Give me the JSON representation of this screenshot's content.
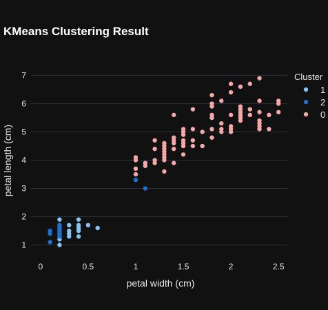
{
  "chart_data": {
    "type": "scatter",
    "title": "KMeans Clustering Result",
    "xlabel": "petal width (cm)",
    "ylabel": "petal length (cm)",
    "xlim": [
      -0.1,
      2.6
    ],
    "ylim": [
      0.6,
      7.4
    ],
    "xticks": [
      0,
      0.5,
      1,
      1.5,
      2,
      2.5
    ],
    "yticks": [
      1,
      2,
      3,
      4,
      5,
      6,
      7
    ],
    "grid": "horizontal",
    "legend": {
      "title": "Cluster",
      "placement": "right"
    },
    "series": [
      {
        "name": "1",
        "color": "#87c3f5",
        "points": [
          [
            0.2,
            1.0
          ],
          [
            0.2,
            1.2
          ],
          [
            0.2,
            1.3
          ],
          [
            0.2,
            1.4
          ],
          [
            0.2,
            1.5
          ],
          [
            0.2,
            1.6
          ],
          [
            0.2,
            1.7
          ],
          [
            0.2,
            1.9
          ],
          [
            0.3,
            1.3
          ],
          [
            0.3,
            1.4
          ],
          [
            0.3,
            1.5
          ],
          [
            0.3,
            1.7
          ],
          [
            0.4,
            1.3
          ],
          [
            0.4,
            1.5
          ],
          [
            0.4,
            1.6
          ],
          [
            0.4,
            1.7
          ],
          [
            0.4,
            1.9
          ],
          [
            0.5,
            1.7
          ],
          [
            0.6,
            1.6
          ]
        ]
      },
      {
        "name": "2",
        "color": "#1f6fd1",
        "points": [
          [
            0.1,
            1.1
          ],
          [
            0.1,
            1.4
          ],
          [
            0.1,
            1.5
          ],
          [
            0.2,
            1.3
          ],
          [
            0.2,
            1.4
          ],
          [
            0.2,
            1.5
          ],
          [
            0.2,
            1.6
          ],
          [
            0.2,
            1.7
          ],
          [
            1.0,
            3.3
          ],
          [
            1.1,
            3.0
          ]
        ]
      },
      {
        "name": "0",
        "color": "#f4a8a8",
        "points": [
          [
            1.0,
            3.5
          ],
          [
            1.0,
            3.7
          ],
          [
            1.0,
            4.0
          ],
          [
            1.0,
            4.1
          ],
          [
            1.1,
            3.8
          ],
          [
            1.1,
            3.9
          ],
          [
            1.2,
            3.9
          ],
          [
            1.2,
            4.0
          ],
          [
            1.2,
            4.4
          ],
          [
            1.2,
            4.7
          ],
          [
            1.3,
            3.6
          ],
          [
            1.3,
            4.0
          ],
          [
            1.3,
            4.1
          ],
          [
            1.3,
            4.2
          ],
          [
            1.3,
            4.3
          ],
          [
            1.3,
            4.4
          ],
          [
            1.3,
            4.5
          ],
          [
            1.3,
            4.6
          ],
          [
            1.4,
            3.9
          ],
          [
            1.4,
            4.4
          ],
          [
            1.4,
            4.6
          ],
          [
            1.4,
            4.7
          ],
          [
            1.4,
            4.8
          ],
          [
            1.4,
            5.6
          ],
          [
            1.5,
            4.2
          ],
          [
            1.5,
            4.5
          ],
          [
            1.5,
            4.6
          ],
          [
            1.5,
            4.7
          ],
          [
            1.5,
            4.9
          ],
          [
            1.5,
            5.0
          ],
          [
            1.5,
            5.1
          ],
          [
            1.6,
            4.5
          ],
          [
            1.6,
            4.7
          ],
          [
            1.6,
            5.1
          ],
          [
            1.6,
            5.8
          ],
          [
            1.7,
            4.5
          ],
          [
            1.7,
            5.0
          ],
          [
            1.8,
            4.8
          ],
          [
            1.8,
            5.1
          ],
          [
            1.8,
            5.5
          ],
          [
            1.8,
            5.6
          ],
          [
            1.8,
            5.9
          ],
          [
            1.8,
            6.0
          ],
          [
            1.8,
            6.3
          ],
          [
            1.9,
            5.0
          ],
          [
            1.9,
            5.1
          ],
          [
            1.9,
            5.3
          ],
          [
            1.9,
            6.1
          ],
          [
            2.0,
            5.0
          ],
          [
            2.0,
            5.1
          ],
          [
            2.0,
            5.2
          ],
          [
            2.0,
            5.6
          ],
          [
            2.0,
            6.4
          ],
          [
            2.0,
            6.7
          ],
          [
            2.1,
            5.4
          ],
          [
            2.1,
            5.5
          ],
          [
            2.1,
            5.6
          ],
          [
            2.1,
            5.7
          ],
          [
            2.1,
            5.8
          ],
          [
            2.1,
            5.9
          ],
          [
            2.1,
            6.6
          ],
          [
            2.2,
            5.6
          ],
          [
            2.2,
            5.8
          ],
          [
            2.2,
            6.7
          ],
          [
            2.3,
            5.1
          ],
          [
            2.3,
            5.2
          ],
          [
            2.3,
            5.3
          ],
          [
            2.3,
            5.4
          ],
          [
            2.3,
            5.7
          ],
          [
            2.3,
            6.1
          ],
          [
            2.3,
            6.9
          ],
          [
            2.4,
            5.1
          ],
          [
            2.4,
            5.6
          ],
          [
            2.5,
            5.7
          ],
          [
            2.5,
            6.0
          ],
          [
            2.5,
            6.1
          ]
        ]
      }
    ]
  }
}
